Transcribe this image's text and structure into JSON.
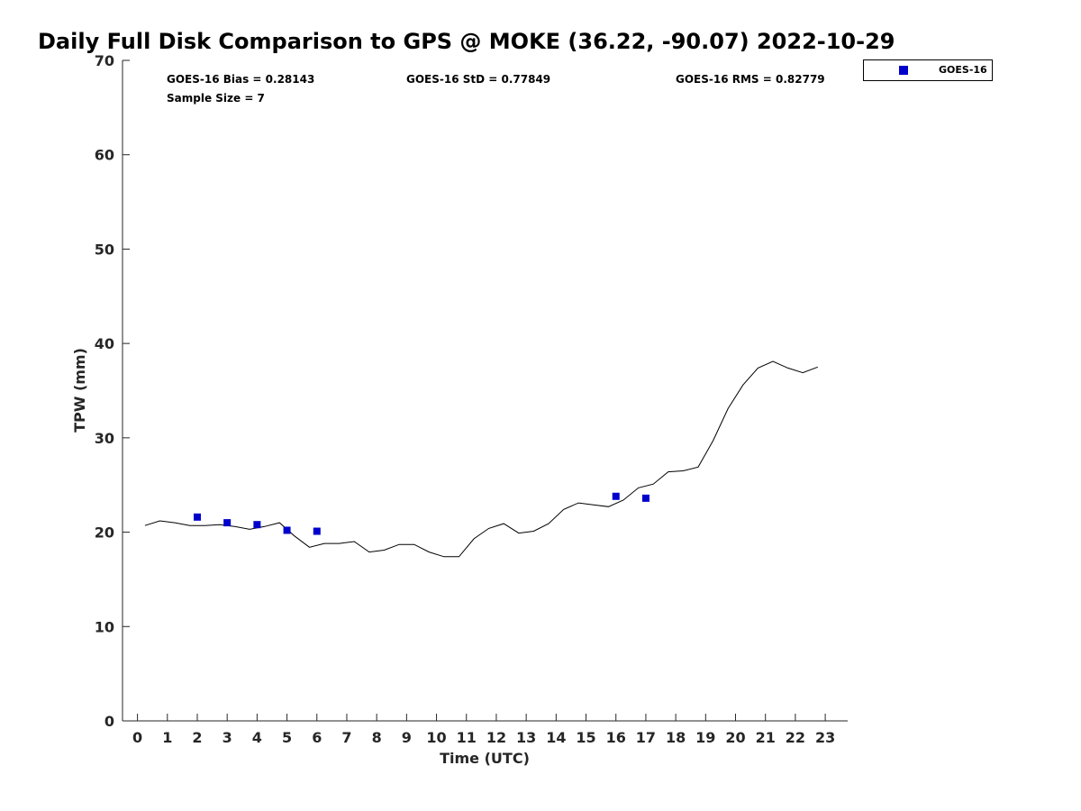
{
  "chart_data": {
    "type": "scatter",
    "title": "Daily Full Disk Comparison to GPS @ MOKE (36.22, -90.07) 2022-10-29",
    "xlabel": "Time (UTC)",
    "ylabel": "TPW (mm)",
    "xlim": [
      -0.5,
      23.75
    ],
    "ylim": [
      0,
      70
    ],
    "x_ticks": [
      0,
      1,
      2,
      3,
      4,
      5,
      6,
      7,
      8,
      9,
      10,
      11,
      12,
      13,
      14,
      15,
      16,
      17,
      18,
      19,
      20,
      21,
      22,
      23
    ],
    "y_ticks": [
      0,
      10,
      20,
      30,
      40,
      50,
      60,
      70
    ],
    "grid": false,
    "legend_position": "outside-top-right",
    "stats": {
      "bias": "GOES-16 Bias = 0.28143",
      "std": "GOES-16 StD = 0.77849",
      "rms": "GOES-16 RMS = 0.82779",
      "sample_size": "Sample Size = 7"
    },
    "series": [
      {
        "kind": "line",
        "color": "#000000",
        "x": [
          0.25,
          0.75,
          1.25,
          1.75,
          2.25,
          2.75,
          3.25,
          3.75,
          4.25,
          4.75,
          5.25,
          5.75,
          6.25,
          6.75,
          7.25,
          7.75,
          8.25,
          8.75,
          9.25,
          9.75,
          10.25,
          10.75,
          11.25,
          11.75,
          12.25,
          12.75,
          13.25,
          13.75,
          14.25,
          14.75,
          15.25,
          15.75,
          16.25,
          16.75,
          17.25,
          17.75,
          18.25,
          18.75,
          19.25,
          19.75,
          20.25,
          20.75,
          21.25,
          21.75,
          22.25,
          22.75
        ],
        "y": [
          20.7,
          21.2,
          21.0,
          20.7,
          20.7,
          20.8,
          20.6,
          20.3,
          20.6,
          21.0,
          19.6,
          18.4,
          18.8,
          18.8,
          19.0,
          17.9,
          18.1,
          18.7,
          18.7,
          17.9,
          17.4,
          17.4,
          19.3,
          20.4,
          20.9,
          19.9,
          20.1,
          20.9,
          22.4,
          23.1,
          22.9,
          22.7,
          23.4,
          24.7,
          25.1,
          26.4,
          26.5,
          26.9,
          29.7,
          33.1,
          35.6,
          37.4,
          38.1,
          37.4,
          36.9,
          37.5
        ]
      },
      {
        "name": "GOES-16",
        "kind": "scatter",
        "color": "#0000cc",
        "x": [
          2,
          3,
          4,
          5,
          6,
          16,
          17
        ],
        "y": [
          21.6,
          21.0,
          20.8,
          20.2,
          20.1,
          23.8,
          23.6
        ]
      }
    ]
  }
}
